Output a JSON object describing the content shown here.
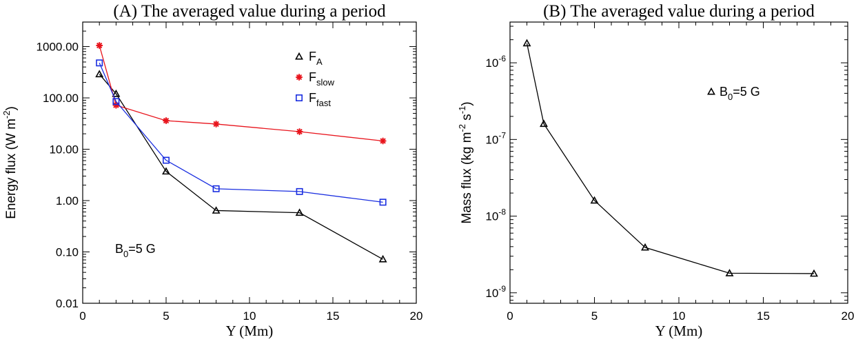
{
  "chart_data": [
    {
      "id": "A",
      "type": "line",
      "title": "(A) The averaged value during a period",
      "xlabel": "Y (Mm)",
      "ylabel": {
        "base": "Energy flux (W m",
        "sup": "-2",
        "end": ")"
      },
      "xlim": [
        0,
        20
      ],
      "ylim": [
        0.01,
        3000
      ],
      "yscale": "log",
      "xticks": [
        0,
        5,
        10,
        15,
        20
      ],
      "xtick_labels": [
        "0",
        "5",
        "10",
        "15",
        "20"
      ],
      "yticks": [
        0.01,
        0.1,
        1,
        10,
        100,
        1000
      ],
      "ytick_labels": [
        "0.01",
        "0.10",
        "1.00",
        "10.00",
        "100.00",
        "1000.00"
      ],
      "annotation": {
        "base": "B",
        "sub": "0",
        "rest": "=5 G"
      },
      "legend_position": "top-right",
      "series": [
        {
          "name": "F_A",
          "label": {
            "base": "F",
            "sub": "A"
          },
          "color": "#000000",
          "marker": "triangle",
          "x": [
            1,
            2,
            5,
            8,
            13,
            18
          ],
          "values": [
            290,
            120,
            3.7,
            0.64,
            0.58,
            0.072
          ]
        },
        {
          "name": "F_slow",
          "label": {
            "base": "F",
            "sub": "slow"
          },
          "color": "#e8141c",
          "marker": "asterisk",
          "x": [
            1,
            2,
            5,
            8,
            13,
            18
          ],
          "values": [
            1050,
            72,
            36,
            31,
            22,
            14.5
          ]
        },
        {
          "name": "F_fast",
          "label": {
            "base": "F",
            "sub": "fast"
          },
          "color": "#1a2ee0",
          "marker": "square",
          "x": [
            1,
            2,
            5,
            8,
            13,
            18
          ],
          "values": [
            480,
            85,
            6.1,
            1.7,
            1.5,
            0.93
          ]
        }
      ]
    },
    {
      "id": "B",
      "type": "line",
      "title": "(B) The averaged value during a period",
      "xlabel": "Y (Mm)",
      "ylabel": {
        "base": "Mass flux (kg m",
        "sup1": "-2",
        "mid": " s",
        "sup2": "-1",
        "end": ")"
      },
      "xlim": [
        0,
        20
      ],
      "ylim": [
        7.3e-10,
        3.4e-06
      ],
      "yscale": "log",
      "xticks": [
        0,
        5,
        10,
        15,
        20
      ],
      "xtick_labels": [
        "0",
        "5",
        "10",
        "15",
        "20"
      ],
      "yticks": [
        1e-09,
        1e-08,
        1e-07,
        1e-06
      ],
      "ytick_labels": [
        {
          "base": "10",
          "sup": "-9"
        },
        {
          "base": "10",
          "sup": "-8"
        },
        {
          "base": "10",
          "sup": "-7"
        },
        {
          "base": "10",
          "sup": "-6"
        }
      ],
      "legend_position": "top-right",
      "series": [
        {
          "name": "B0=5 G",
          "label": {
            "base": "B",
            "sub": "0",
            "rest": "=5 G"
          },
          "color": "#000000",
          "marker": "triangle",
          "x": [
            1,
            2,
            5,
            8,
            13,
            18
          ],
          "values": [
            1.8e-06,
            1.6e-07,
            1.6e-08,
            3.9e-09,
            1.8e-09,
            1.78e-09
          ]
        }
      ]
    }
  ]
}
